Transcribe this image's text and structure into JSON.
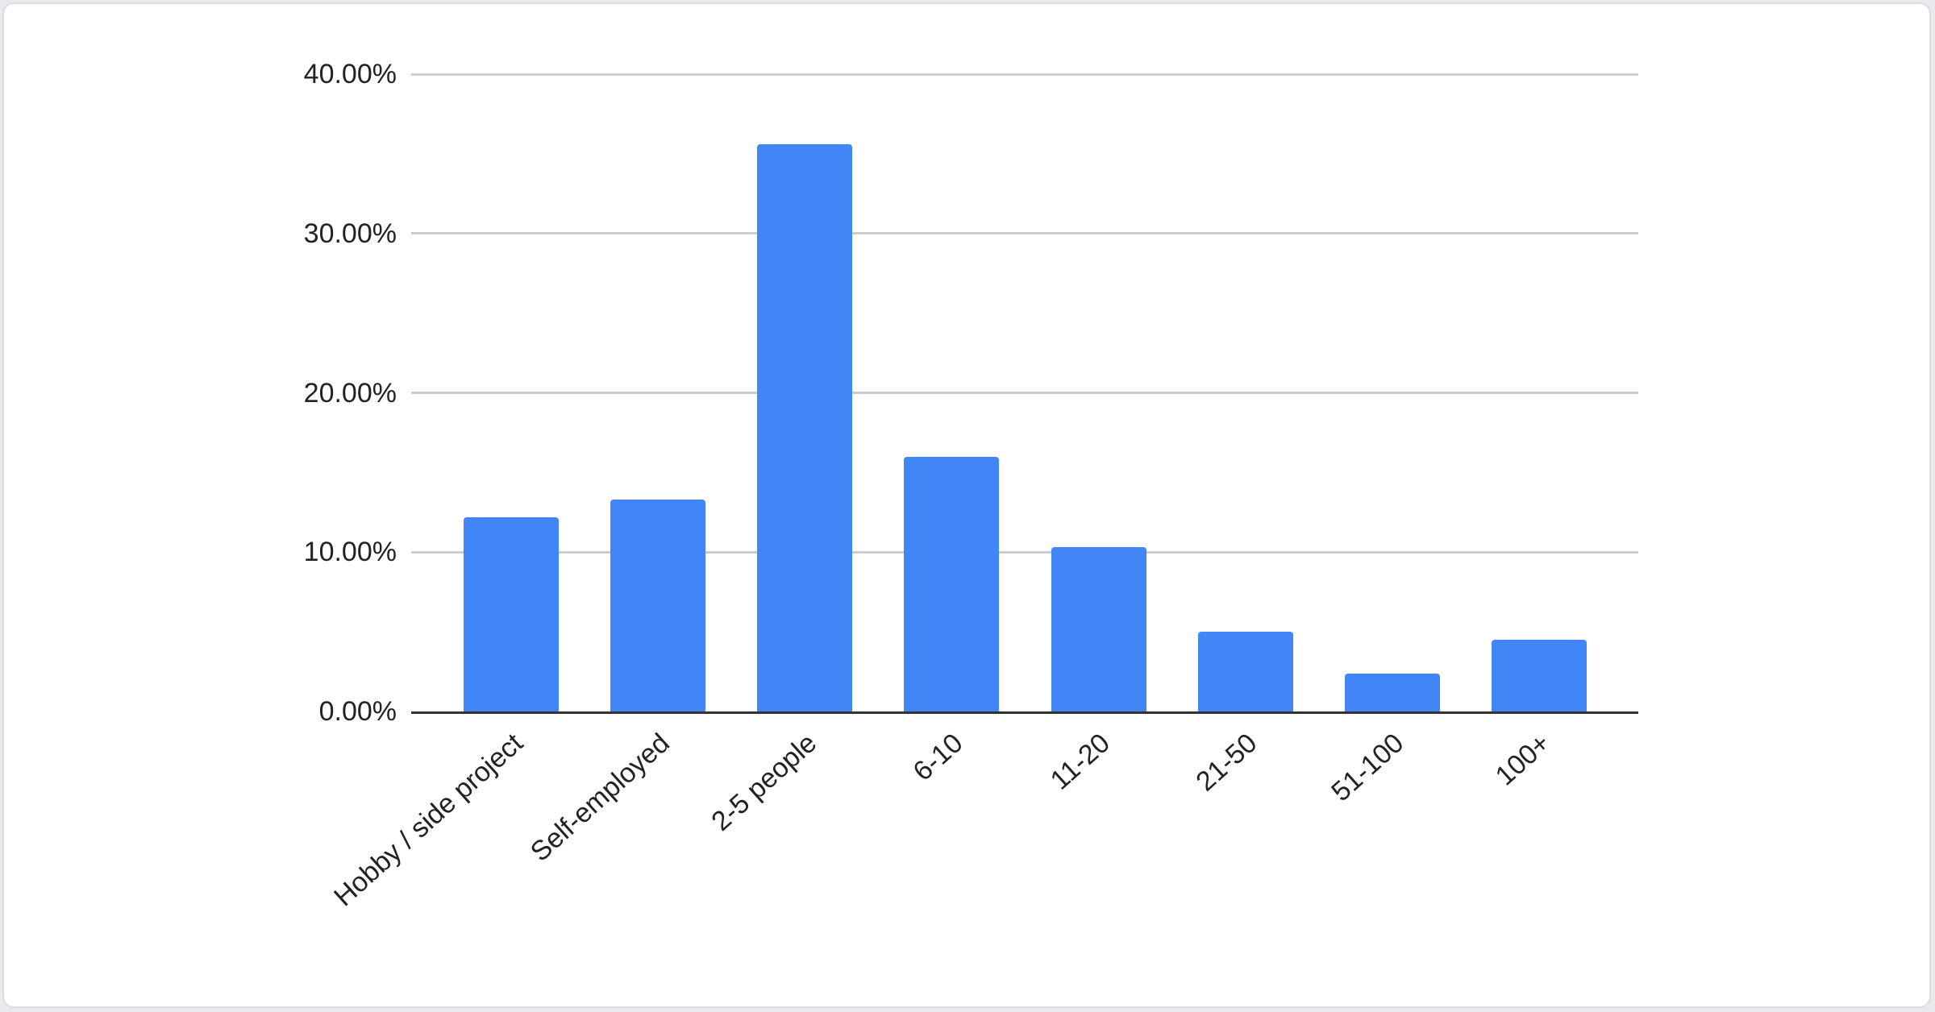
{
  "card": {
    "background_color": "#ffffff",
    "border_color": "#d9dce1"
  },
  "chart_data": {
    "type": "bar",
    "title": "",
    "xlabel": "",
    "ylabel": "",
    "categories": [
      "Hobby / side project",
      "Self-employed",
      "2-5 people",
      "6-10",
      "11-20",
      "21-50",
      "51-100",
      "100+"
    ],
    "values": [
      12.2,
      13.3,
      35.6,
      16.0,
      10.3,
      5.0,
      2.4,
      4.5
    ],
    "ylim": [
      0,
      40
    ],
    "ytick_values": [
      0,
      10,
      20,
      30,
      40
    ],
    "ytick_labels": [
      "0.00%",
      "10.00%",
      "20.00%",
      "30.00%",
      "40.00%"
    ],
    "grid": true,
    "legend": "none",
    "bar_color": "#4285F4",
    "gridline_color": "#cccccc",
    "axis_line_color": "#333333",
    "label_color": "#222222"
  }
}
